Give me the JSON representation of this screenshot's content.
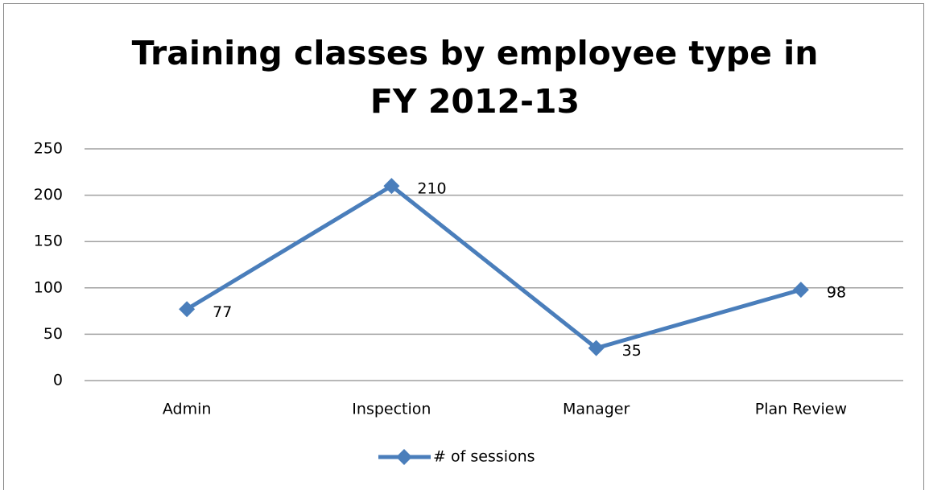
{
  "chart_data": {
    "type": "line",
    "title": "Training classes by employee type in FY 2012-13",
    "categories": [
      "Admin",
      "Inspection",
      "Manager",
      "Plan Review"
    ],
    "series": [
      {
        "name": "# of sessions",
        "color": "#4a7ebb",
        "values": [
          77,
          210,
          35,
          98
        ]
      }
    ],
    "ylim": [
      0,
      250
    ],
    "yticks": [
      0,
      50,
      100,
      150,
      200,
      250
    ],
    "grid": true,
    "legend": "bottom",
    "data_labels": true
  }
}
